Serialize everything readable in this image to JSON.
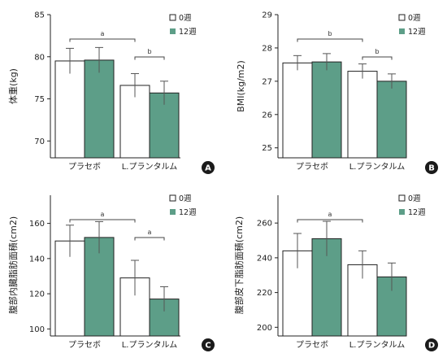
{
  "colors": {
    "placebo": "#ffffff",
    "week12": "#5d9e88",
    "axis": "#222222",
    "badge": "#1a1a1a"
  },
  "legend": {
    "week0": "0週",
    "week12": "12週"
  },
  "chart_data": [
    {
      "type": "bar",
      "panel": "A",
      "ylabel": "体重(kg)",
      "categories": [
        "プラセボ",
        "L.プランタルム"
      ],
      "ylim": [
        68,
        85
      ],
      "yticks": [
        70,
        75,
        80,
        85
      ],
      "series": [
        {
          "name": "0週",
          "values": [
            79.5,
            76.6
          ],
          "errors": [
            1.5,
            1.4
          ]
        },
        {
          "name": "12週",
          "values": [
            79.6,
            75.7
          ],
          "errors": [
            1.5,
            1.4
          ]
        }
      ],
      "significance": [
        {
          "label": "a",
          "from": [
            0,
            0
          ],
          "to": [
            1,
            0
          ]
        },
        {
          "label": "b",
          "from": [
            1,
            0
          ],
          "to": [
            1,
            1
          ]
        }
      ]
    },
    {
      "type": "bar",
      "panel": "B",
      "ylabel": "BMI(kg/m2)",
      "categories": [
        "プラセボ",
        "L.プランタルム"
      ],
      "ylim": [
        24.7,
        29
      ],
      "yticks": [
        25,
        26,
        27,
        28,
        29
      ],
      "series": [
        {
          "name": "0週",
          "values": [
            27.55,
            27.3
          ],
          "errors": [
            0.22,
            0.22
          ]
        },
        {
          "name": "12週",
          "values": [
            27.58,
            27.0
          ],
          "errors": [
            0.25,
            0.22
          ]
        }
      ],
      "significance": [
        {
          "label": "b",
          "from": [
            0,
            0
          ],
          "to": [
            1,
            0
          ]
        },
        {
          "label": "b",
          "from": [
            1,
            0
          ],
          "to": [
            1,
            1
          ]
        }
      ]
    },
    {
      "type": "bar",
      "panel": "C",
      "ylabel": "腹部内臓脂肪面積(cm2)",
      "categories": [
        "プラセボ",
        "L.プランタルム"
      ],
      "ylim": [
        96,
        176
      ],
      "yticks": [
        100,
        120,
        140,
        160
      ],
      "series": [
        {
          "name": "0週",
          "values": [
            150,
            129
          ],
          "errors": [
            9,
            10
          ]
        },
        {
          "name": "12週",
          "values": [
            152,
            117
          ],
          "errors": [
            9,
            7
          ]
        }
      ],
      "significance": [
        {
          "label": "a",
          "from": [
            0,
            0
          ],
          "to": [
            1,
            0
          ]
        },
        {
          "label": "a",
          "from": [
            1,
            0
          ],
          "to": [
            1,
            1
          ]
        }
      ]
    },
    {
      "type": "bar",
      "panel": "D",
      "ylabel": "腹部皮下脂肪面積(cm2)",
      "categories": [
        "プラセボ",
        "L.プランタルム"
      ],
      "ylim": [
        195,
        276
      ],
      "yticks": [
        200,
        220,
        240,
        260
      ],
      "series": [
        {
          "name": "0週",
          "values": [
            244,
            236
          ],
          "errors": [
            10,
            8
          ]
        },
        {
          "name": "12週",
          "values": [
            251,
            229
          ],
          "errors": [
            10,
            8
          ]
        }
      ],
      "significance": [
        {
          "label": "a",
          "from": [
            0,
            0
          ],
          "to": [
            1,
            0
          ]
        }
      ]
    }
  ]
}
